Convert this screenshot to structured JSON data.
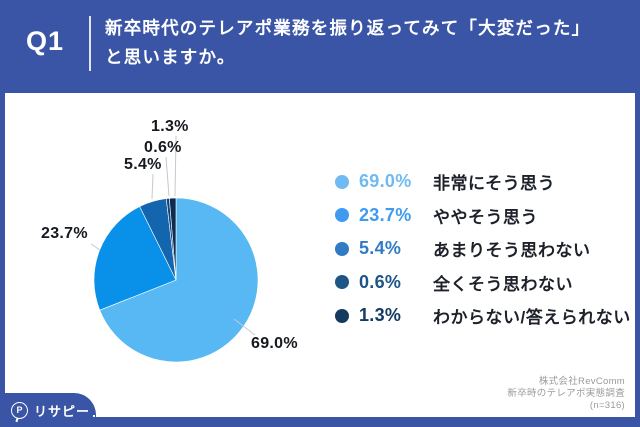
{
  "header": {
    "question_number": "Q1",
    "question_line1": "新卒時代のテレアポ業務を振り返ってみて「大変だった」",
    "question_line2": "と思いますか。"
  },
  "chart_data": {
    "type": "pie",
    "title": "新卒時代のテレアポ業務を振り返ってみて「大変だった」と思いますか。",
    "direction": "clockwise",
    "start_angle_deg": 0,
    "legend_position": "right",
    "slices": [
      {
        "label": "非常にそう思う",
        "value": 69.0,
        "pct_label": "69.0%",
        "color": "#57B8F4",
        "legend_color": "#70BAF2"
      },
      {
        "label": "ややそう思う",
        "value": 23.7,
        "pct_label": "23.7%",
        "color": "#0990E9",
        "legend_color": "#3F9BF0"
      },
      {
        "label": "あまりそう思わない",
        "value": 5.4,
        "pct_label": "5.4%",
        "color": "#1366AD",
        "legend_color": "#2F7CC4"
      },
      {
        "label": "全くそう思わない",
        "value": 0.6,
        "pct_label": "0.6%",
        "color": "#104478",
        "legend_color": "#1C5586"
      },
      {
        "label": "わからない/答えられない",
        "value": 1.3,
        "pct_label": "1.3%",
        "color": "#0C2D51",
        "legend_color": "#153A61"
      }
    ]
  },
  "footer": {
    "credit_line1": "株式会社RevComm",
    "credit_line2": "新卒時のテレアポ実態調査",
    "credit_line3": "(n=316)"
  },
  "logo": {
    "mark_letter": "P",
    "text": "リサピー"
  },
  "colors": {
    "background_blue": "#3B55A6",
    "card_white": "#FFFFFF",
    "leader_line": "#C5C9CD",
    "label_text": "#16191F",
    "credit_text": "#9B9B9B"
  }
}
